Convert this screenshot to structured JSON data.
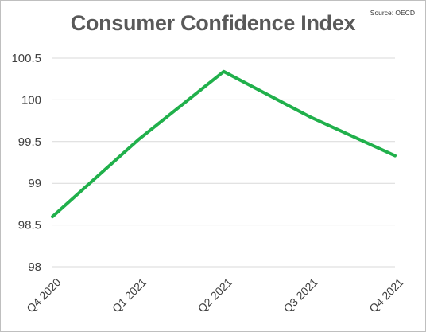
{
  "chart_data": {
    "type": "line",
    "title": "Consumer Confidence Index",
    "source": "Source: OECD",
    "xlabel": "",
    "ylabel": "",
    "categories": [
      "Q4 2020",
      "Q1 2021",
      "Q2 2021",
      "Q3 2021",
      "Q4 2021"
    ],
    "series": [
      {
        "values": [
          98.6,
          99.52,
          100.34,
          99.8,
          99.33
        ],
        "color": "#20b04b"
      }
    ],
    "ylim": [
      98,
      100.5
    ],
    "yticks": [
      "98",
      "98.5",
      "99",
      "99.5",
      "100",
      "100.5"
    ],
    "grid": true,
    "legend": "none"
  }
}
